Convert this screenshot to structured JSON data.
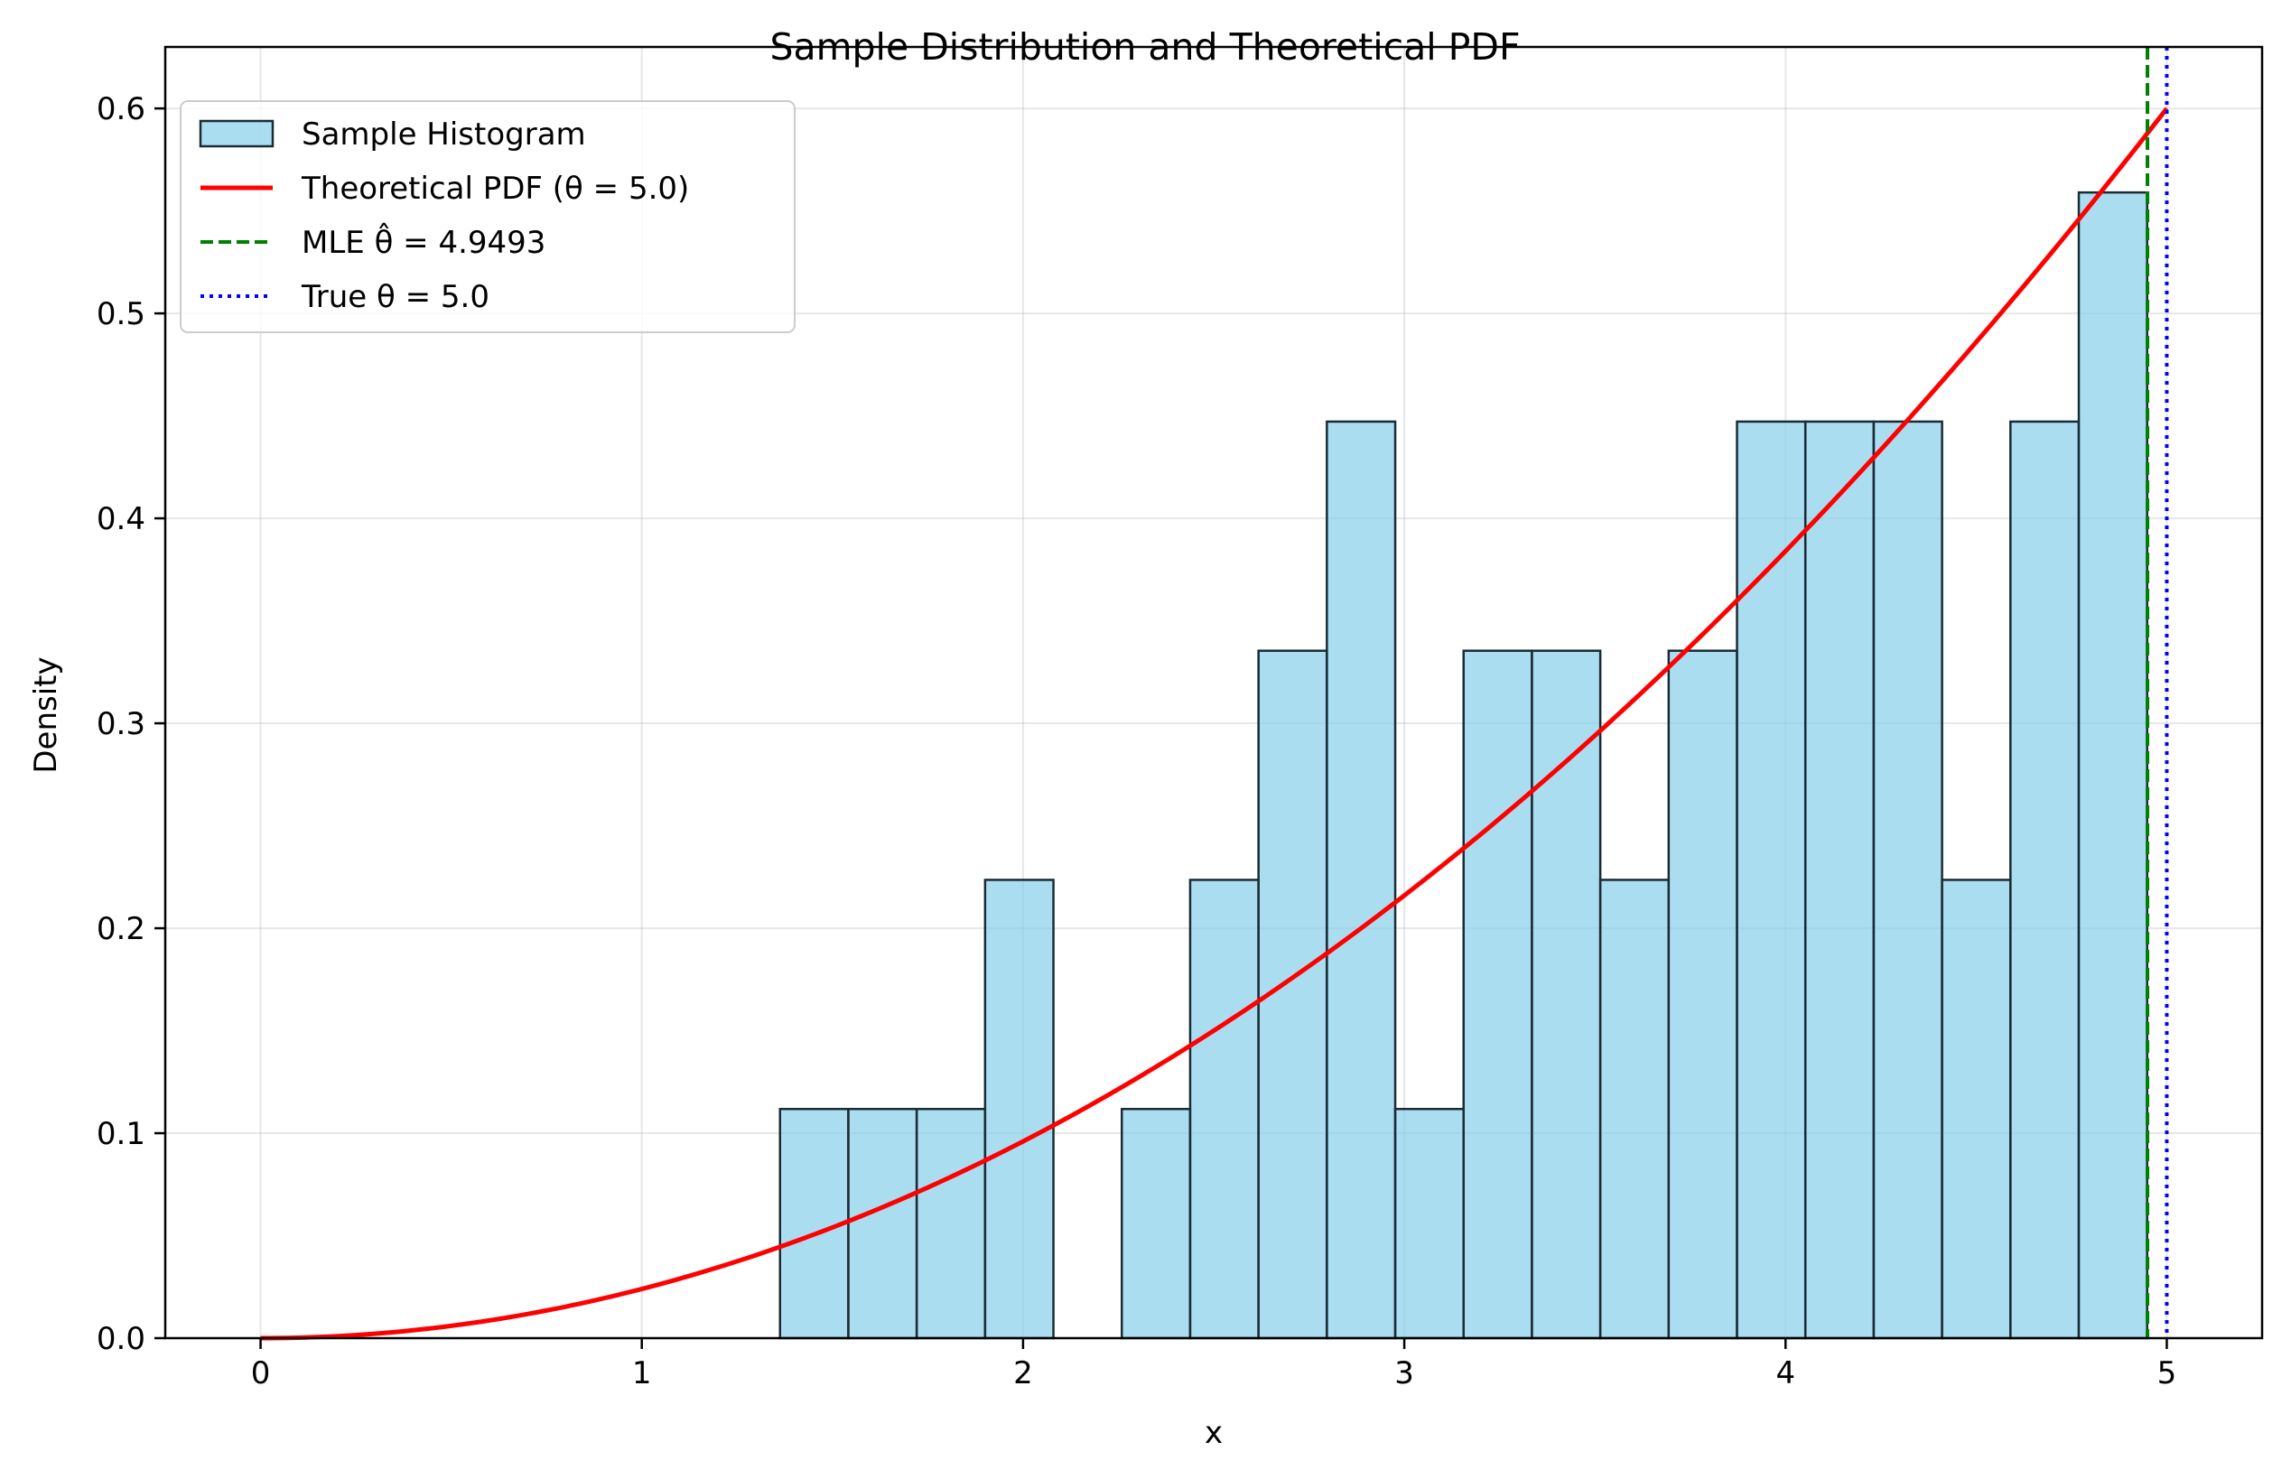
{
  "chart_data": {
    "type": "bar",
    "title": "Sample Distribution and Theoretical PDF",
    "xlabel": "x",
    "ylabel": "Density",
    "xlim": [
      -0.25,
      5.25
    ],
    "ylim": [
      0,
      0.63
    ],
    "grid": true,
    "legend_position": "top-left",
    "x_ticks": [
      {
        "value": 0,
        "label": "0"
      },
      {
        "value": 1,
        "label": "1"
      },
      {
        "value": 2,
        "label": "2"
      },
      {
        "value": 3,
        "label": "3"
      },
      {
        "value": 4,
        "label": "4"
      },
      {
        "value": 5,
        "label": "5"
      }
    ],
    "y_ticks": [
      {
        "value": 0.0,
        "label": "0.0"
      },
      {
        "value": 0.1,
        "label": "0.1"
      },
      {
        "value": 0.2,
        "label": "0.2"
      },
      {
        "value": 0.3,
        "label": "0.3"
      },
      {
        "value": 0.4,
        "label": "0.4"
      },
      {
        "value": 0.5,
        "label": "0.5"
      },
      {
        "value": 0.6,
        "label": "0.6"
      }
    ],
    "histogram": {
      "name": "Sample Histogram",
      "color": "#87CEEB",
      "edge_color": "#1a2b33",
      "bin_edges": [
        1.3625,
        1.5418,
        1.7211,
        1.9004,
        2.0797,
        2.259,
        2.4383,
        2.6176,
        2.7969,
        2.9762,
        3.1555,
        3.3348,
        3.5141,
        3.6934,
        3.8727,
        4.052,
        4.2313,
        4.4106,
        4.5899,
        4.7692,
        4.9485
      ],
      "densities": [
        0.1118,
        0.1118,
        0.1118,
        0.2236,
        0.0,
        0.1118,
        0.2236,
        0.3354,
        0.4472,
        0.1118,
        0.3354,
        0.3354,
        0.2236,
        0.3354,
        0.4472,
        0.4472,
        0.4472,
        0.2236,
        0.4472,
        0.559
      ]
    },
    "series": [
      {
        "name": "Theoretical PDF (θ = 5.0)",
        "type": "line",
        "color": "#ff0000",
        "formula": "3*x^2/theta^3",
        "theta": 5.0,
        "x_range": [
          0,
          5
        ]
      },
      {
        "name": "MLE θ̂ = 4.9493",
        "type": "vline",
        "x": 4.9493,
        "color": "#008000",
        "style": "dashed"
      },
      {
        "name": "True θ = 5.0",
        "type": "vline",
        "x": 5.0,
        "color": "#0000ff",
        "style": "dotted"
      }
    ]
  }
}
